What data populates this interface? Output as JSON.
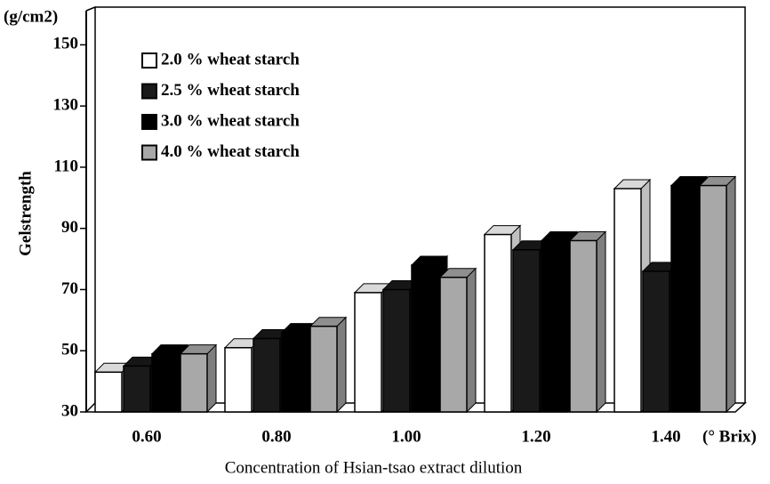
{
  "chart_data": {
    "type": "bar3d",
    "y_unit": "(g/cm2)",
    "y_label": "Gelstrength",
    "x_label": "Concentration of Hsian-tsao extract dilution",
    "x_unit": "(° Brix)",
    "categories": [
      "0.60",
      "0.80",
      "1.00",
      "1.20",
      "1.40"
    ],
    "series": [
      {
        "name": "2.0 % wheat starch",
        "color": "#ffffff",
        "values": [
          43,
          51,
          69,
          88,
          103
        ]
      },
      {
        "name": "2.5 % wheat starch",
        "color": "#1a1a1a",
        "values": [
          45,
          54,
          70,
          83,
          76
        ]
      },
      {
        "name": "3.0 % wheat starch",
        "color": "#000000",
        "values": [
          49,
          56,
          78,
          86,
          104
        ]
      },
      {
        "name": "4.0 % wheat starch",
        "color": "#a8a8a8",
        "values": [
          49,
          58,
          74,
          86,
          104
        ]
      }
    ],
    "ylim": [
      30,
      160
    ],
    "yticks": [
      30,
      50,
      70,
      90,
      110,
      130,
      150
    ]
  }
}
